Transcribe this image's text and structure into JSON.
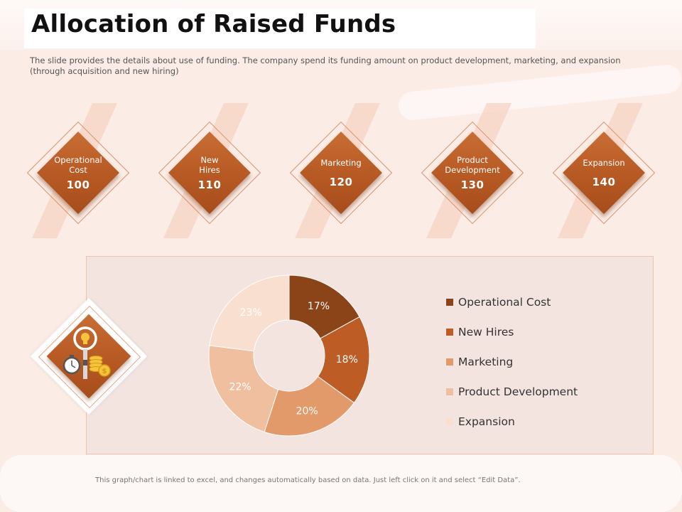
{
  "title": "Allocation of Raised Funds",
  "subtitle": "The slide provides the details about use of funding.  The company spend its funding  amount on product development, marketing, and expansion (through acquisition  and new hiring)",
  "cards": [
    {
      "label": "Operational Cost",
      "value": "100"
    },
    {
      "label": "New Hires",
      "value": "110"
    },
    {
      "label": "Marketing",
      "value": "120"
    },
    {
      "label": "Product Development",
      "value": "130"
    },
    {
      "label": "Expansion",
      "value": "140"
    }
  ],
  "icons": {
    "panel_icon": "stopwatch-money-lightbulb-icon"
  },
  "chart_data": {
    "type": "pie",
    "variant": "donut",
    "categories": [
      "Operational Cost",
      "New Hires",
      "Marketing",
      "Product Development",
      "Expansion"
    ],
    "values": [
      17,
      18,
      20,
      22,
      23
    ],
    "value_labels": [
      "17%",
      "18%",
      "20%",
      "22%",
      "23%"
    ],
    "colors": [
      "#8b4418",
      "#bd5d25",
      "#e39a6a",
      "#f0bfa0",
      "#f9dfd0"
    ],
    "label_colors": [
      "#ffffff",
      "#ffffff",
      "#ffffff",
      "#ffffff",
      "#ffffff"
    ],
    "legend_position": "right"
  },
  "footer": "This graph/chart is linked to excel, and changes automatically based on data. Just left click on it and select “Edit Data”."
}
